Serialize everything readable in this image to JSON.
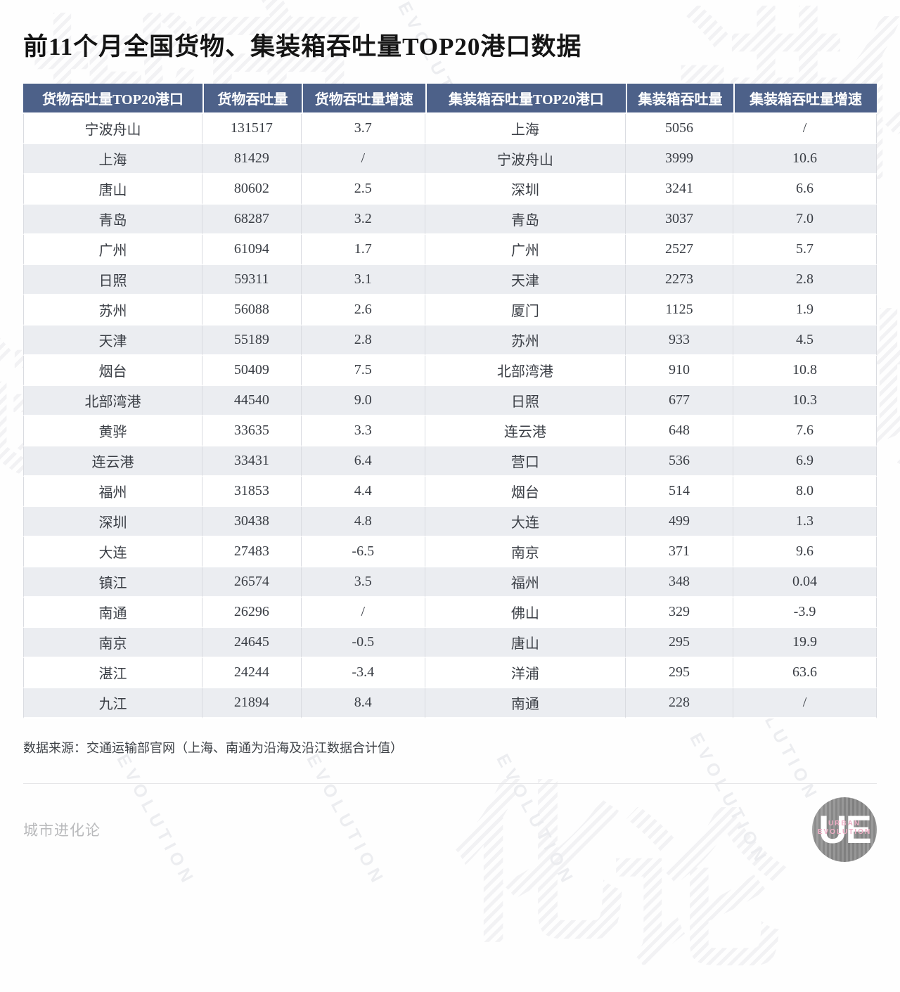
{
  "title": "前11个月全国货物、集装箱吞吐量TOP20港口数据",
  "table": {
    "headers": [
      "货物吞吐量TOP20港口",
      "货物吞吐量",
      "货物吞吐量增速",
      "集装箱吞吐量TOP20港口",
      "集装箱吞吐量",
      "集装箱吞吐量增速"
    ],
    "rows": [
      [
        "宁波舟山",
        "131517",
        "3.7",
        "上海",
        "5056",
        "/"
      ],
      [
        "上海",
        "81429",
        "/",
        "宁波舟山",
        "3999",
        "10.6"
      ],
      [
        "唐山",
        "80602",
        "2.5",
        "深圳",
        "3241",
        "6.6"
      ],
      [
        "青岛",
        "68287",
        "3.2",
        "青岛",
        "3037",
        "7.0"
      ],
      [
        "广州",
        "61094",
        "1.7",
        "广州",
        "2527",
        "5.7"
      ],
      [
        "日照",
        "59311",
        "3.1",
        "天津",
        "2273",
        "2.8"
      ],
      [
        "苏州",
        "56088",
        "2.6",
        "厦门",
        "1125",
        "1.9"
      ],
      [
        "天津",
        "55189",
        "2.8",
        "苏州",
        "933",
        "4.5"
      ],
      [
        "烟台",
        "50409",
        "7.5",
        "北部湾港",
        "910",
        "10.8"
      ],
      [
        "北部湾港",
        "44540",
        "9.0",
        "日照",
        "677",
        "10.3"
      ],
      [
        "黄骅",
        "33635",
        "3.3",
        "连云港",
        "648",
        "7.6"
      ],
      [
        "连云港",
        "33431",
        "6.4",
        "营口",
        "536",
        "6.9"
      ],
      [
        "福州",
        "31853",
        "4.4",
        "烟台",
        "514",
        "8.0"
      ],
      [
        "深圳",
        "30438",
        "4.8",
        "大连",
        "499",
        "1.3"
      ],
      [
        "大连",
        "27483",
        "-6.5",
        "南京",
        "371",
        "9.6"
      ],
      [
        "镇江",
        "26574",
        "3.5",
        "福州",
        "348",
        "0.04"
      ],
      [
        "南通",
        "26296",
        "/",
        "佛山",
        "329",
        "-3.9"
      ],
      [
        "南京",
        "24645",
        "-0.5",
        "唐山",
        "295",
        "19.9"
      ],
      [
        "湛江",
        "24244",
        "-3.4",
        "洋浦",
        "295",
        "63.6"
      ],
      [
        "九江",
        "21894",
        "8.4",
        "南通",
        "228",
        "/"
      ]
    ]
  },
  "source_note": "数据来源：交通运输部官网（上海、南通为沿海及沿江数据合计值）",
  "footer": {
    "brand": "城市进化论",
    "logo_initials": "UE",
    "logo_line1": "URBAN",
    "logo_line2": "EVOLUTION"
  },
  "watermark": {
    "big_chars": [
      "城",
      "市",
      "进",
      "化",
      "论"
    ],
    "word": "EVOLUTION"
  },
  "colors": {
    "header_bg": "#4d6189",
    "row_alt": "#ebedf1",
    "logo_pink": "#efaec5",
    "brand_gray": "#b9babc"
  },
  "chart_data": {
    "type": "table",
    "title": "前11个月全国货物、集装箱吞吐量TOP20港口数据",
    "tables": [
      {
        "name": "货物吞吐量TOP20港口",
        "columns": [
          "港口",
          "货物吞吐量",
          "货物吞吐量增速"
        ],
        "rows": [
          [
            "宁波舟山",
            131517,
            3.7
          ],
          [
            "上海",
            81429,
            "/"
          ],
          [
            "唐山",
            80602,
            2.5
          ],
          [
            "青岛",
            68287,
            3.2
          ],
          [
            "广州",
            61094,
            1.7
          ],
          [
            "日照",
            59311,
            3.1
          ],
          [
            "苏州",
            56088,
            2.6
          ],
          [
            "天津",
            55189,
            2.8
          ],
          [
            "烟台",
            50409,
            7.5
          ],
          [
            "北部湾港",
            44540,
            9.0
          ],
          [
            "黄骅",
            33635,
            3.3
          ],
          [
            "连云港",
            33431,
            6.4
          ],
          [
            "福州",
            31853,
            4.4
          ],
          [
            "深圳",
            30438,
            4.8
          ],
          [
            "大连",
            27483,
            -6.5
          ],
          [
            "镇江",
            26574,
            3.5
          ],
          [
            "南通",
            26296,
            "/"
          ],
          [
            "南京",
            24645,
            -0.5
          ],
          [
            "湛江",
            24244,
            -3.4
          ],
          [
            "九江",
            21894,
            8.4
          ]
        ]
      },
      {
        "name": "集装箱吞吐量TOP20港口",
        "columns": [
          "港口",
          "集装箱吞吐量",
          "集装箱吞吐量增速"
        ],
        "rows": [
          [
            "上海",
            5056,
            "/"
          ],
          [
            "宁波舟山",
            3999,
            10.6
          ],
          [
            "深圳",
            3241,
            6.6
          ],
          [
            "青岛",
            3037,
            7.0
          ],
          [
            "广州",
            2527,
            5.7
          ],
          [
            "天津",
            2273,
            2.8
          ],
          [
            "厦门",
            1125,
            1.9
          ],
          [
            "苏州",
            933,
            4.5
          ],
          [
            "北部湾港",
            910,
            10.8
          ],
          [
            "日照",
            677,
            10.3
          ],
          [
            "连云港",
            648,
            7.6
          ],
          [
            "营口",
            536,
            6.9
          ],
          [
            "烟台",
            514,
            8.0
          ],
          [
            "大连",
            499,
            1.3
          ],
          [
            "南京",
            371,
            9.6
          ],
          [
            "福州",
            348,
            0.04
          ],
          [
            "佛山",
            329,
            -3.9
          ],
          [
            "唐山",
            295,
            19.9
          ],
          [
            "洋浦",
            295,
            63.6
          ],
          [
            "南通",
            228,
            "/"
          ]
        ]
      }
    ],
    "source": "数据来源：交通运输部官网（上海、南通为沿海及沿江数据合计值）"
  }
}
